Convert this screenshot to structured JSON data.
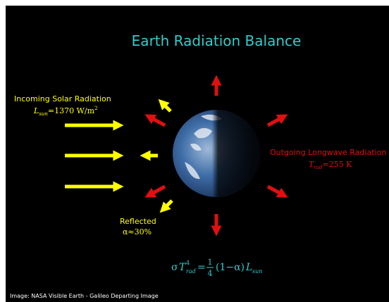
{
  "title": "Earth Radiation Balance",
  "incoming": {
    "label": "Incoming Solar Radiation",
    "symbol": "L",
    "subscript": "sun",
    "value": "=1370 W/m",
    "superscript": "2"
  },
  "outgoing": {
    "label": "Outgoing Longwave Radiation",
    "symbol": "T",
    "subscript": "rad",
    "value": "=255 K"
  },
  "reflected": {
    "label": "Reflected",
    "value": "α≈30%"
  },
  "equation": {
    "sigma": "σ",
    "symbol": "T",
    "exponent": "4",
    "subscript": "rad",
    "equals": "=",
    "numerator": "1",
    "denominator": "4",
    "factor": "(1−α)",
    "L": "L",
    "L_subscript": "sun"
  },
  "caption": "Image: NASA Visible Earth - Galileo Departing Image"
}
